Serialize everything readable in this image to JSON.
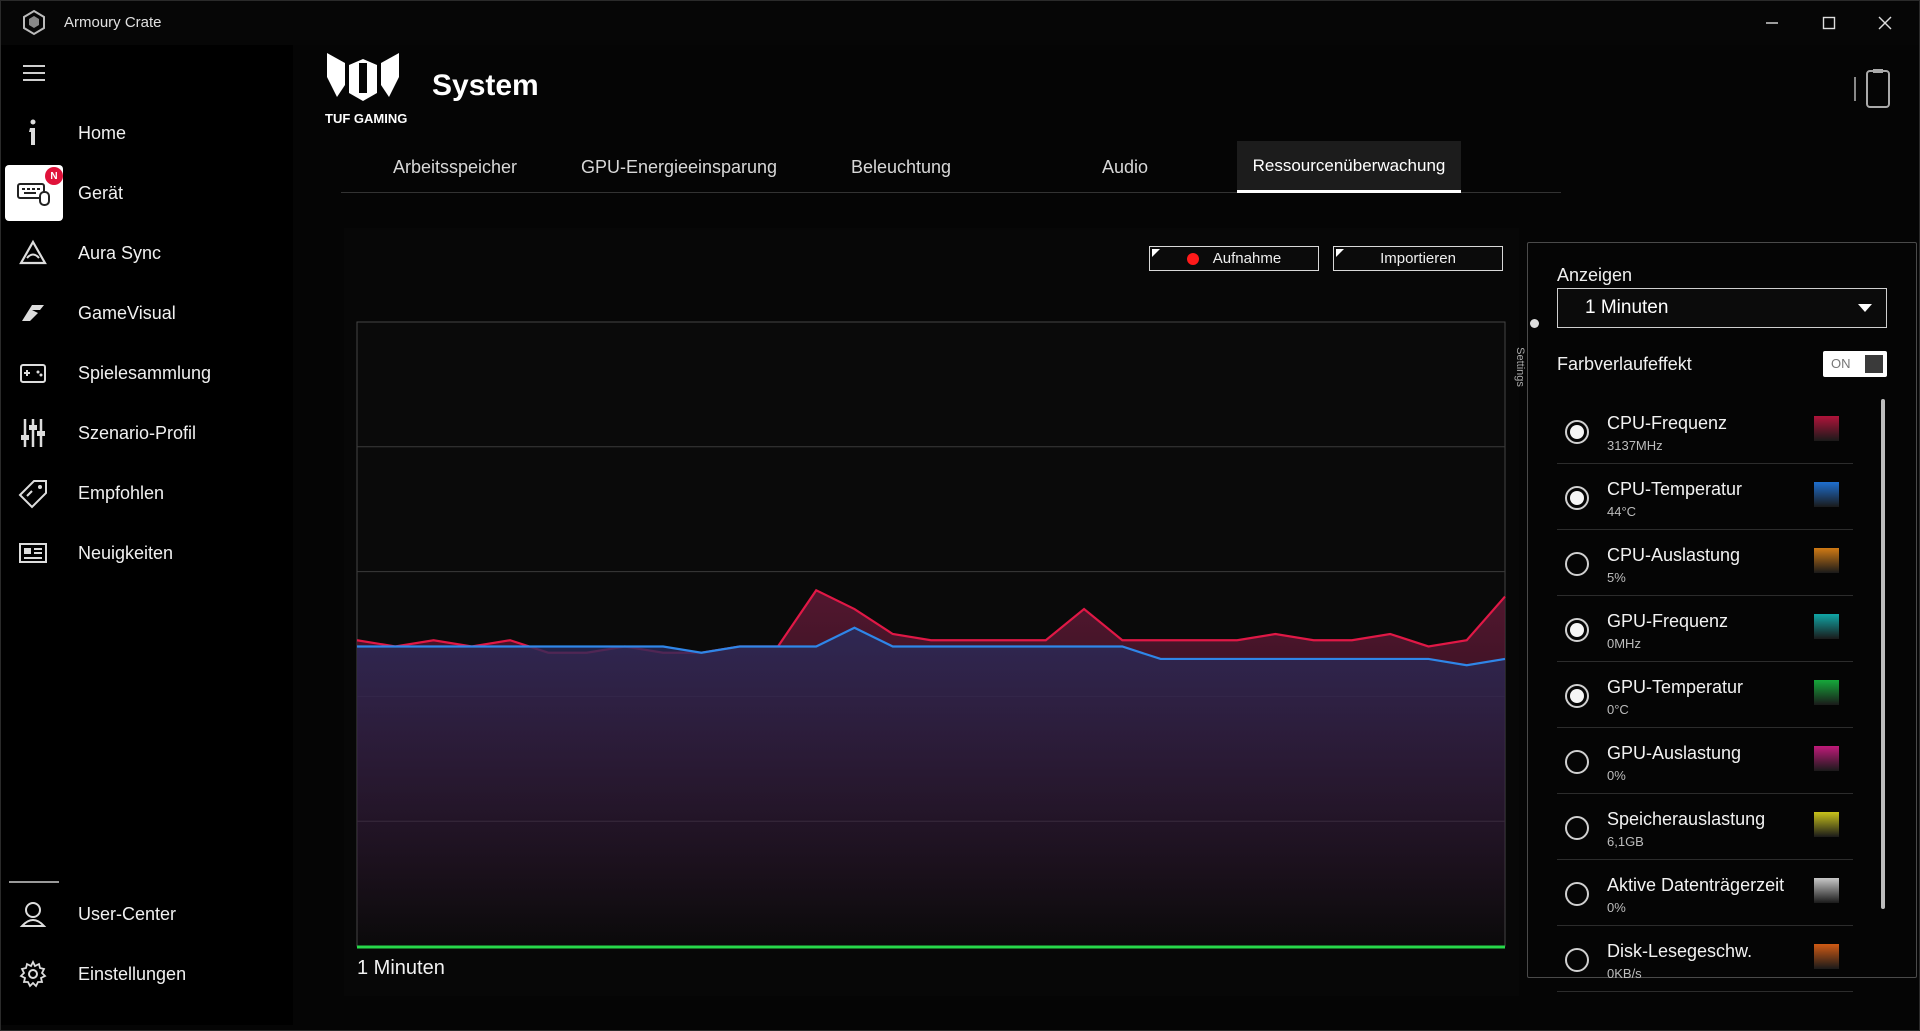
{
  "window": {
    "title": "Armoury Crate"
  },
  "sidebar": {
    "items": [
      {
        "label": "Home",
        "icon": "home-icon"
      },
      {
        "label": "Gerät",
        "icon": "keyboard-mouse-icon",
        "badge": "N"
      },
      {
        "label": "Aura Sync",
        "icon": "aura-sync-icon"
      },
      {
        "label": "GameVisual",
        "icon": "gamevisual-icon"
      },
      {
        "label": "Spielesammlung",
        "icon": "game-library-icon"
      },
      {
        "label": "Szenario-Profil",
        "icon": "sliders-icon"
      },
      {
        "label": "Empfohlen",
        "icon": "tag-icon"
      },
      {
        "label": "Neuigkeiten",
        "icon": "news-icon"
      }
    ],
    "bottom": [
      {
        "label": "User-Center",
        "icon": "user-icon"
      },
      {
        "label": "Einstellungen",
        "icon": "gear-icon"
      }
    ]
  },
  "header": {
    "logo_text": "TUF GAMING",
    "title": "System"
  },
  "tabs": [
    {
      "label": "Arbeitsspeicher"
    },
    {
      "label": "GPU-Energieeinsparung"
    },
    {
      "label": "Beleuchtung"
    },
    {
      "label": "Audio"
    },
    {
      "label": "Ressourcenüberwachung",
      "active": true
    }
  ],
  "toolbar": {
    "record_label": "Aufnahme",
    "import_label": "Importieren"
  },
  "chart": {
    "range_label": "1 Minuten"
  },
  "settings": {
    "tab_label": "Settings",
    "display_label": "Anzeigen",
    "display_value": "1 Minuten",
    "gradient_label": "Farbverlaufeffekt",
    "gradient_toggle": "ON",
    "metrics": [
      {
        "name": "CPU-Frequenz",
        "value": "3137MHz",
        "checked": true,
        "color": "#b0133a"
      },
      {
        "name": "CPU-Temperatur",
        "value": "44°C",
        "checked": true,
        "color": "#1e6fd0"
      },
      {
        "name": "CPU-Auslastung",
        "value": "5%",
        "checked": false,
        "color": "#d07a14"
      },
      {
        "name": "GPU-Frequenz",
        "value": "0MHz",
        "checked": true,
        "color": "#10a6a6"
      },
      {
        "name": "GPU-Temperatur",
        "value": "0°C",
        "checked": true,
        "color": "#15a83a"
      },
      {
        "name": "GPU-Auslastung",
        "value": "0%",
        "checked": false,
        "color": "#c01a7a"
      },
      {
        "name": "Speicherauslastung",
        "value": "6,1GB",
        "checked": false,
        "color": "#c8c21a"
      },
      {
        "name": "Aktive Datenträgerzeit",
        "value": "0%",
        "checked": false,
        "color": "#c8c8c8"
      },
      {
        "name": "Disk-Lesegeschw.",
        "value": "0KB/s",
        "checked": false,
        "color": "#d05a14"
      }
    ]
  },
  "chart_data": {
    "type": "area",
    "series": [
      {
        "color": "#e01846",
        "values": [
          49,
          48,
          49,
          48,
          49,
          47,
          47,
          48,
          47,
          47,
          48,
          48,
          57,
          54,
          50,
          49,
          49,
          49,
          49,
          54,
          49,
          49,
          49,
          49,
          50,
          49,
          49,
          50,
          48,
          49,
          56
        ]
      },
      {
        "color": "#2f86e8",
        "values": [
          48,
          48,
          48,
          48,
          48,
          48,
          48,
          48,
          48,
          47,
          48,
          48,
          48,
          51,
          48,
          48,
          48,
          48,
          48,
          48,
          48,
          46,
          46,
          46,
          46,
          46,
          46,
          46,
          46,
          45,
          46
        ]
      }
    ],
    "ylim": [
      0,
      100
    ],
    "grid": true,
    "gridlines": 4,
    "legend": false
  }
}
